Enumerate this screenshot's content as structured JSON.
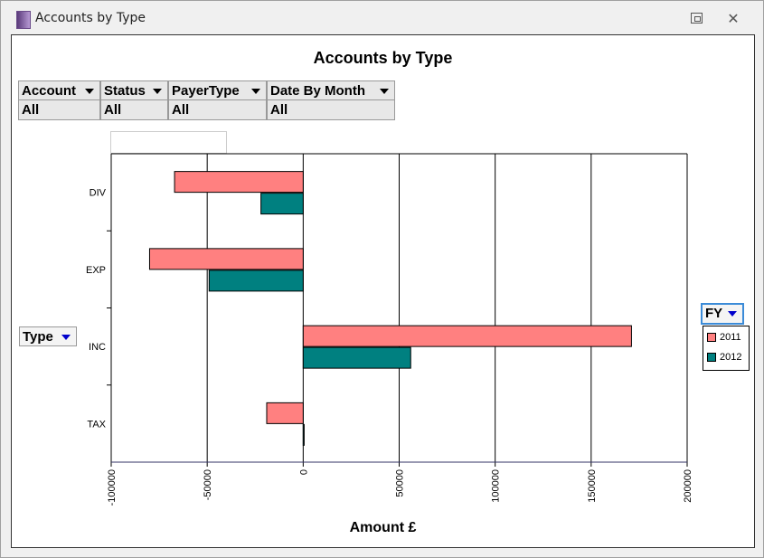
{
  "window": {
    "title": "Accounts by Type"
  },
  "filters": [
    {
      "label": "Account",
      "value": "All"
    },
    {
      "label": "Status",
      "value": "All"
    },
    {
      "label": "PayerType",
      "value": "All"
    },
    {
      "label": "Date By Month",
      "value": "All"
    }
  ],
  "type_field": {
    "label": "Type"
  },
  "fy_field": {
    "label": "FY"
  },
  "chart_data": {
    "type": "bar",
    "orientation": "horizontal",
    "title": "Accounts by Type",
    "xlabel": "Amount £",
    "ylabel": "",
    "categories": [
      "DIV",
      "EXP",
      "INC",
      "TAX"
    ],
    "series": [
      {
        "name": "2011",
        "color": "#ff8080",
        "values": [
          -67000,
          -80000,
          171000,
          -19000
        ]
      },
      {
        "name": "2012",
        "color": "#008080",
        "values": [
          -22000,
          -49000,
          56000,
          500
        ]
      }
    ],
    "xlim": [
      -100000,
      200000
    ],
    "xticks": [
      "-100000",
      "-50000",
      "0",
      "50000",
      "100000",
      "150000",
      "200000"
    ],
    "grid": "vertical",
    "legend_position": "right"
  }
}
